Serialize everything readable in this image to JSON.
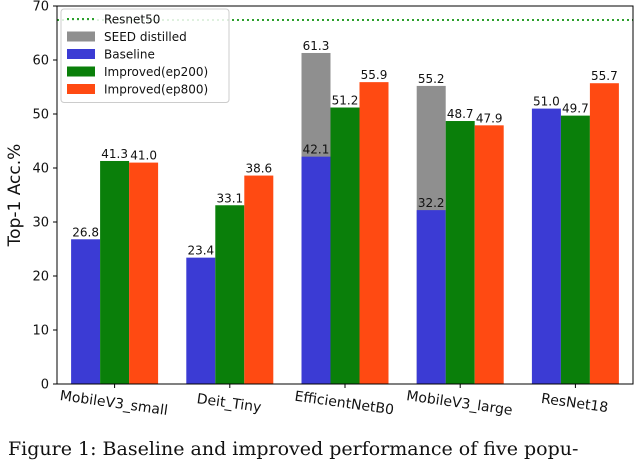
{
  "chart_data": {
    "type": "bar",
    "ylabel": "Top-1 Acc.%",
    "xlabel": "",
    "ylim": [
      0,
      70
    ],
    "yticks": [
      0,
      10,
      20,
      30,
      40,
      50,
      60,
      70
    ],
    "categories": [
      "MobileV3_small",
      "Deit_Tiny",
      "EfficientNetB0",
      "MobileV3_large",
      "ResNet18"
    ],
    "reference_line": {
      "name": "Resnet50",
      "value": 67.4,
      "color": "#2ca02c",
      "style": "dotted"
    },
    "series": [
      {
        "name": "SEED distilled",
        "color": "#8f8f8f",
        "values": [
          null,
          null,
          61.3,
          55.2,
          null
        ],
        "stacked_behind": "Baseline"
      },
      {
        "name": "Baseline",
        "color": "#3b3bd4",
        "values": [
          26.8,
          23.4,
          42.1,
          32.2,
          51.0
        ]
      },
      {
        "name": "Improved(ep200)",
        "color": "#0a7f0a",
        "values": [
          41.3,
          33.1,
          51.2,
          48.7,
          49.7
        ]
      },
      {
        "name": "Improved(ep800)",
        "color": "#ff4a12",
        "values": [
          41.0,
          38.6,
          55.9,
          47.9,
          55.7
        ]
      }
    ],
    "data_labels": {
      "SEED distilled": [
        "",
        "",
        "61.3",
        "55.2",
        ""
      ],
      "Baseline": [
        "26.8",
        "23.4",
        "42.1",
        "32.2",
        "51.0"
      ],
      "Improved(ep200)": [
        "41.3",
        "33.1",
        "51.2",
        "48.7",
        "49.7"
      ],
      "Improved(ep800)": [
        "41.0",
        "38.6",
        "55.9",
        "47.9",
        "55.7"
      ]
    },
    "legend": {
      "placement": "top-left",
      "entries": [
        "Resnet50",
        "SEED distilled",
        "Baseline",
        "Improved(ep200)",
        "Improved(ep800)"
      ]
    },
    "grid": false
  },
  "caption": "Figure 1: Baseline and improved performance of five popu-"
}
